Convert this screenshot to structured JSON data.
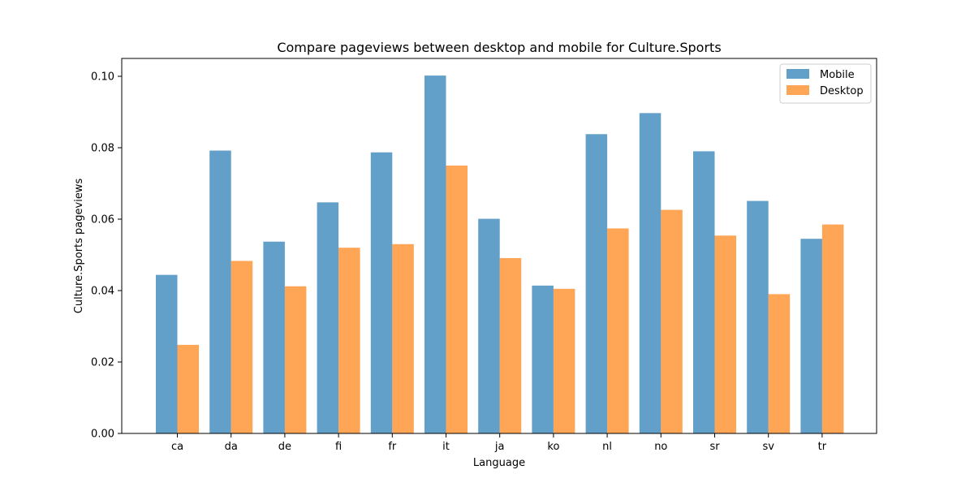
{
  "chart_data": {
    "type": "bar",
    "title": "Compare pageviews between desktop and mobile for Culture.Sports",
    "xlabel": "Language",
    "ylabel": "Culture.Sports pageviews",
    "categories": [
      "ca",
      "da",
      "de",
      "fi",
      "fr",
      "it",
      "ja",
      "ko",
      "nl",
      "no",
      "sr",
      "sv",
      "tr"
    ],
    "series": [
      {
        "name": "Mobile",
        "color": "#1f77b4",
        "values": [
          0.0444,
          0.0792,
          0.0537,
          0.0647,
          0.0787,
          0.1002,
          0.0601,
          0.0414,
          0.0838,
          0.0897,
          0.079,
          0.0651,
          0.0545
        ]
      },
      {
        "name": "Desktop",
        "color": "#ff7f0e",
        "values": [
          0.0248,
          0.0483,
          0.0412,
          0.052,
          0.053,
          0.075,
          0.0491,
          0.0405,
          0.0574,
          0.0626,
          0.0554,
          0.039,
          0.0585
        ]
      }
    ],
    "ylim": [
      0,
      0.105
    ],
    "yticks": [
      0.0,
      0.02,
      0.04,
      0.06,
      0.08,
      0.1
    ],
    "ytick_labels": [
      "0.00",
      "0.02",
      "0.04",
      "0.06",
      "0.08",
      "0.10"
    ],
    "bar_opacity": 0.7,
    "grid": false,
    "legend_position": "top-right"
  }
}
